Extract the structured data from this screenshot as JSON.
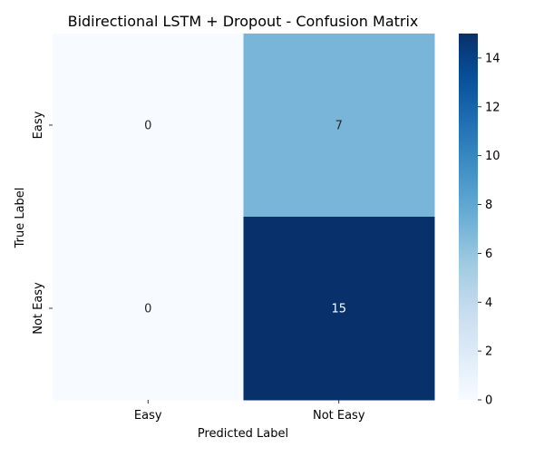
{
  "chart_data": {
    "type": "heatmap",
    "title": "Bidirectional LSTM + Dropout - Confusion Matrix",
    "xlabel": "Predicted Label",
    "ylabel": "True Label",
    "x_categories": [
      "Easy",
      "Not Easy"
    ],
    "y_categories": [
      "Easy",
      "Not Easy"
    ],
    "values": [
      [
        0,
        7
      ],
      [
        0,
        15
      ]
    ],
    "colormap": "Blues",
    "color_range": [
      0,
      15
    ],
    "colorbar_ticks": [
      0,
      2,
      4,
      6,
      8,
      10,
      12,
      14
    ],
    "annotations_shown": true,
    "grid": false
  }
}
